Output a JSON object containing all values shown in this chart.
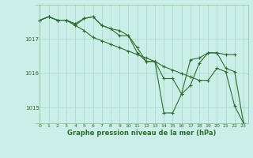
{
  "background_color": "#cceee8",
  "grid_color": "#aaddcc",
  "line_color": "#2d6e2d",
  "title": "Graphe pression niveau de la mer (hPa)",
  "xlim": [
    -0.5,
    23.5
  ],
  "ylim": [
    1014.55,
    1018.0
  ],
  "yticks": [
    1015,
    1016,
    1017
  ],
  "xticks": [
    0,
    1,
    2,
    3,
    4,
    5,
    6,
    7,
    8,
    9,
    10,
    11,
    12,
    13,
    14,
    15,
    16,
    17,
    18,
    19,
    20,
    21,
    22,
    23
  ],
  "series": [
    [
      1017.55,
      1017.65,
      1017.55,
      1017.55,
      1017.45,
      1017.6,
      1017.65,
      1017.4,
      1017.3,
      1017.25,
      1017.1,
      1016.75,
      1016.35,
      1016.35,
      1014.85,
      1014.85,
      1015.4,
      1015.65,
      1016.3,
      1016.6,
      1016.6,
      1016.55,
      1016.55,
      null
    ],
    [
      1017.55,
      1017.65,
      1017.55,
      1017.55,
      1017.4,
      1017.25,
      1017.05,
      1016.95,
      1016.85,
      1016.75,
      1016.65,
      1016.55,
      1016.45,
      1016.35,
      1016.2,
      1016.1,
      1016.0,
      1015.9,
      1015.8,
      1015.8,
      1016.15,
      1016.05,
      1015.05,
      1014.55
    ],
    [
      1017.55,
      1017.65,
      1017.55,
      1017.55,
      1017.4,
      1017.6,
      1017.65,
      1017.4,
      1017.3,
      1017.1,
      1017.1,
      1016.6,
      1016.35,
      1016.35,
      1015.85,
      1015.85,
      1015.4,
      1016.4,
      1016.45,
      1016.6,
      1016.6,
      1016.15,
      1016.05,
      1014.55
    ]
  ]
}
